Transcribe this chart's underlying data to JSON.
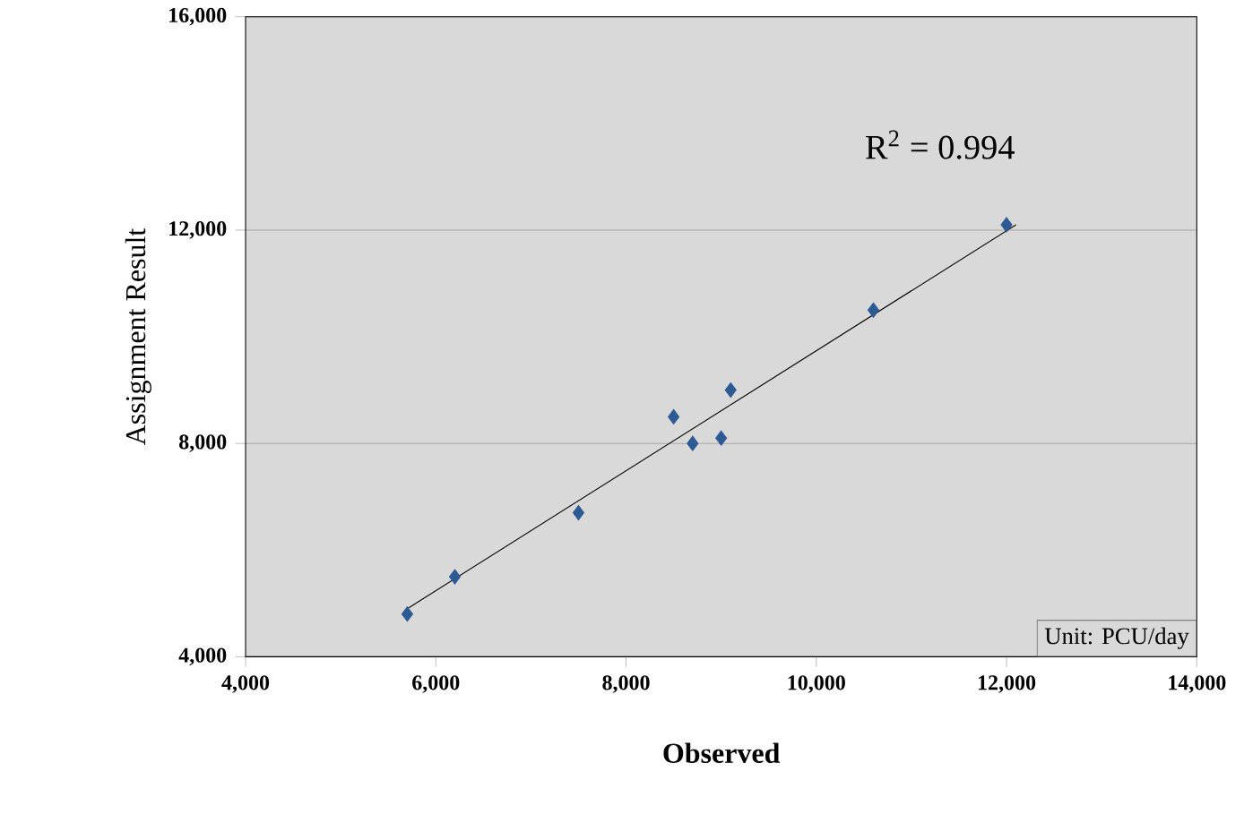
{
  "chart_data": {
    "type": "scatter",
    "xlabel": "Observed",
    "ylabel": "Assignment Result",
    "xlim": [
      4000,
      14000
    ],
    "xticks": [
      {
        "value": 4000,
        "label": "4,000"
      },
      {
        "value": 6000,
        "label": "6,000"
      },
      {
        "value": 8000,
        "label": "8,000"
      },
      {
        "value": 10000,
        "label": "10,000"
      },
      {
        "value": 12000,
        "label": "12,000"
      },
      {
        "value": 14000,
        "label": "14,000"
      }
    ],
    "ylim": [
      4000,
      16000
    ],
    "yticks": [
      {
        "value": 4000,
        "label": "4,000"
      },
      {
        "value": 8000,
        "label": "8,000"
      },
      {
        "value": 12000,
        "label": "12,000"
      },
      {
        "value": 16000,
        "label": "16,000"
      }
    ],
    "grid": "y",
    "series": [
      {
        "marker": "diamond",
        "color": "#2e5a94",
        "x": [
          5700,
          6200,
          7500,
          8500,
          8700,
          9000,
          9100,
          10600,
          12000
        ],
        "values": [
          4800,
          5500,
          6700,
          8500,
          8000,
          8100,
          9000,
          10500,
          12100
        ]
      },
      {
        "type": "line",
        "marker": "none",
        "color": "#000000",
        "x": [
          5700,
          12100
        ],
        "values": [
          4900,
          12100
        ]
      }
    ],
    "annotations": [
      "R$^{2}$ = 0.994",
      "Unit: PCU/day"
    ]
  }
}
